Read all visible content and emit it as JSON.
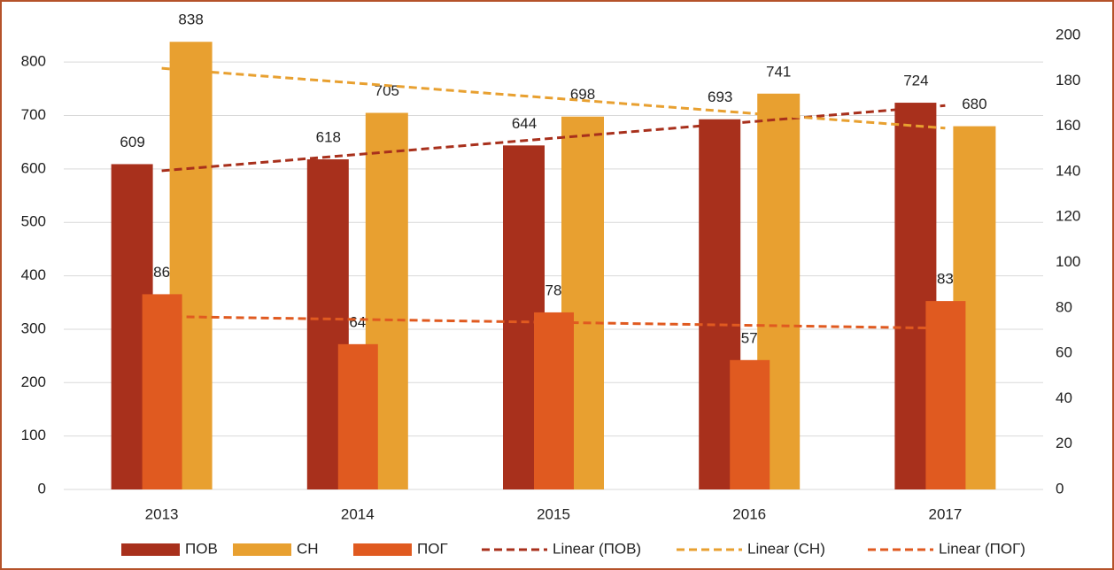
{
  "chart_data": {
    "type": "bar",
    "categories": [
      "2013",
      "2014",
      "2015",
      "2016",
      "2017"
    ],
    "series": [
      {
        "name": "ПОВ",
        "color": "#a8301c",
        "values": [
          609,
          618,
          644,
          693,
          724
        ]
      },
      {
        "name": "СН",
        "color": "#e8a030",
        "values": [
          838,
          705,
          698,
          741,
          680
        ]
      },
      {
        "name": "ПОГ",
        "color": "#e05a20",
        "values": [
          86,
          64,
          78,
          57,
          83
        ],
        "axis": "y2"
      }
    ],
    "trendlines": [
      {
        "name": "Linear (ПОВ)",
        "color": "#a8301c",
        "series": "ПОВ"
      },
      {
        "name": "Linear (СН)",
        "color": "#e8a030",
        "series": "СН"
      },
      {
        "name": "Linear (ПОГ)",
        "color": "#e05a20",
        "series": "ПОГ"
      }
    ],
    "ylim": [
      0,
      850
    ],
    "yticks": [
      0,
      100,
      200,
      300,
      400,
      500,
      600,
      700,
      800
    ],
    "y2lim": [
      0,
      200
    ],
    "y2ticks": [
      0,
      20,
      40,
      60,
      80,
      100,
      120,
      140,
      160,
      180,
      200
    ],
    "grid": true
  }
}
